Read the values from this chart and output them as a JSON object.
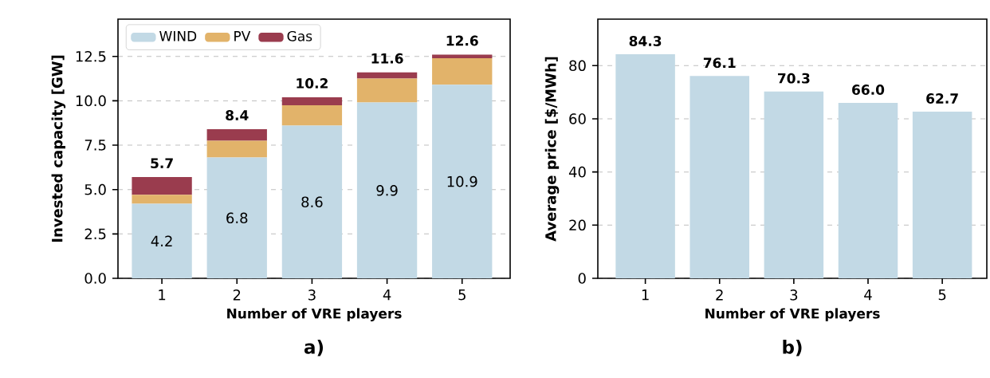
{
  "chart_data": [
    {
      "type": "bar",
      "stacked": true,
      "title": "a)",
      "xlabel": "Number of VRE players",
      "ylabel": "Invested capacity [GW]",
      "categories": [
        "1",
        "2",
        "3",
        "4",
        "5"
      ],
      "series": [
        {
          "name": "WIND",
          "color": "#c2d9e5",
          "values": [
            4.2,
            6.8,
            8.6,
            9.9,
            10.9
          ],
          "value_labels": [
            "4.2",
            "6.8",
            "8.6",
            "9.9",
            "10.9"
          ]
        },
        {
          "name": "PV",
          "color": "#e2b36a",
          "values": [
            0.5,
            0.95,
            1.15,
            1.35,
            1.5
          ]
        },
        {
          "name": "Gas",
          "color": "#9a3c4e",
          "values": [
            1.0,
            0.65,
            0.45,
            0.35,
            0.2
          ]
        }
      ],
      "totals": [
        "5.7",
        "8.4",
        "10.2",
        "11.6",
        "12.6"
      ],
      "ylim": [
        0,
        14.6
      ],
      "yticks": [
        {
          "value": 0,
          "label": "0.0"
        },
        2.5,
        {
          "value": 5,
          "label": "5.0"
        },
        7.5,
        {
          "value": 10,
          "label": "10.0"
        },
        12.5
      ],
      "grid": "y",
      "legend": "top left"
    },
    {
      "type": "bar",
      "title": "b)",
      "xlabel": "Number of VRE players",
      "ylabel": "Average price [$/MWh]",
      "categories": [
        "1",
        "2",
        "3",
        "4",
        "5"
      ],
      "values": [
        84.3,
        76.1,
        70.3,
        66.0,
        62.7
      ],
      "color": "#c2d9e5",
      "value_labels": [
        "84.3",
        "76.1",
        "70.3",
        "66.0",
        "62.7"
      ],
      "ylim": [
        0,
        97.5
      ],
      "yticks": [
        0,
        20,
        40,
        60,
        80
      ],
      "grid": "y"
    }
  ]
}
